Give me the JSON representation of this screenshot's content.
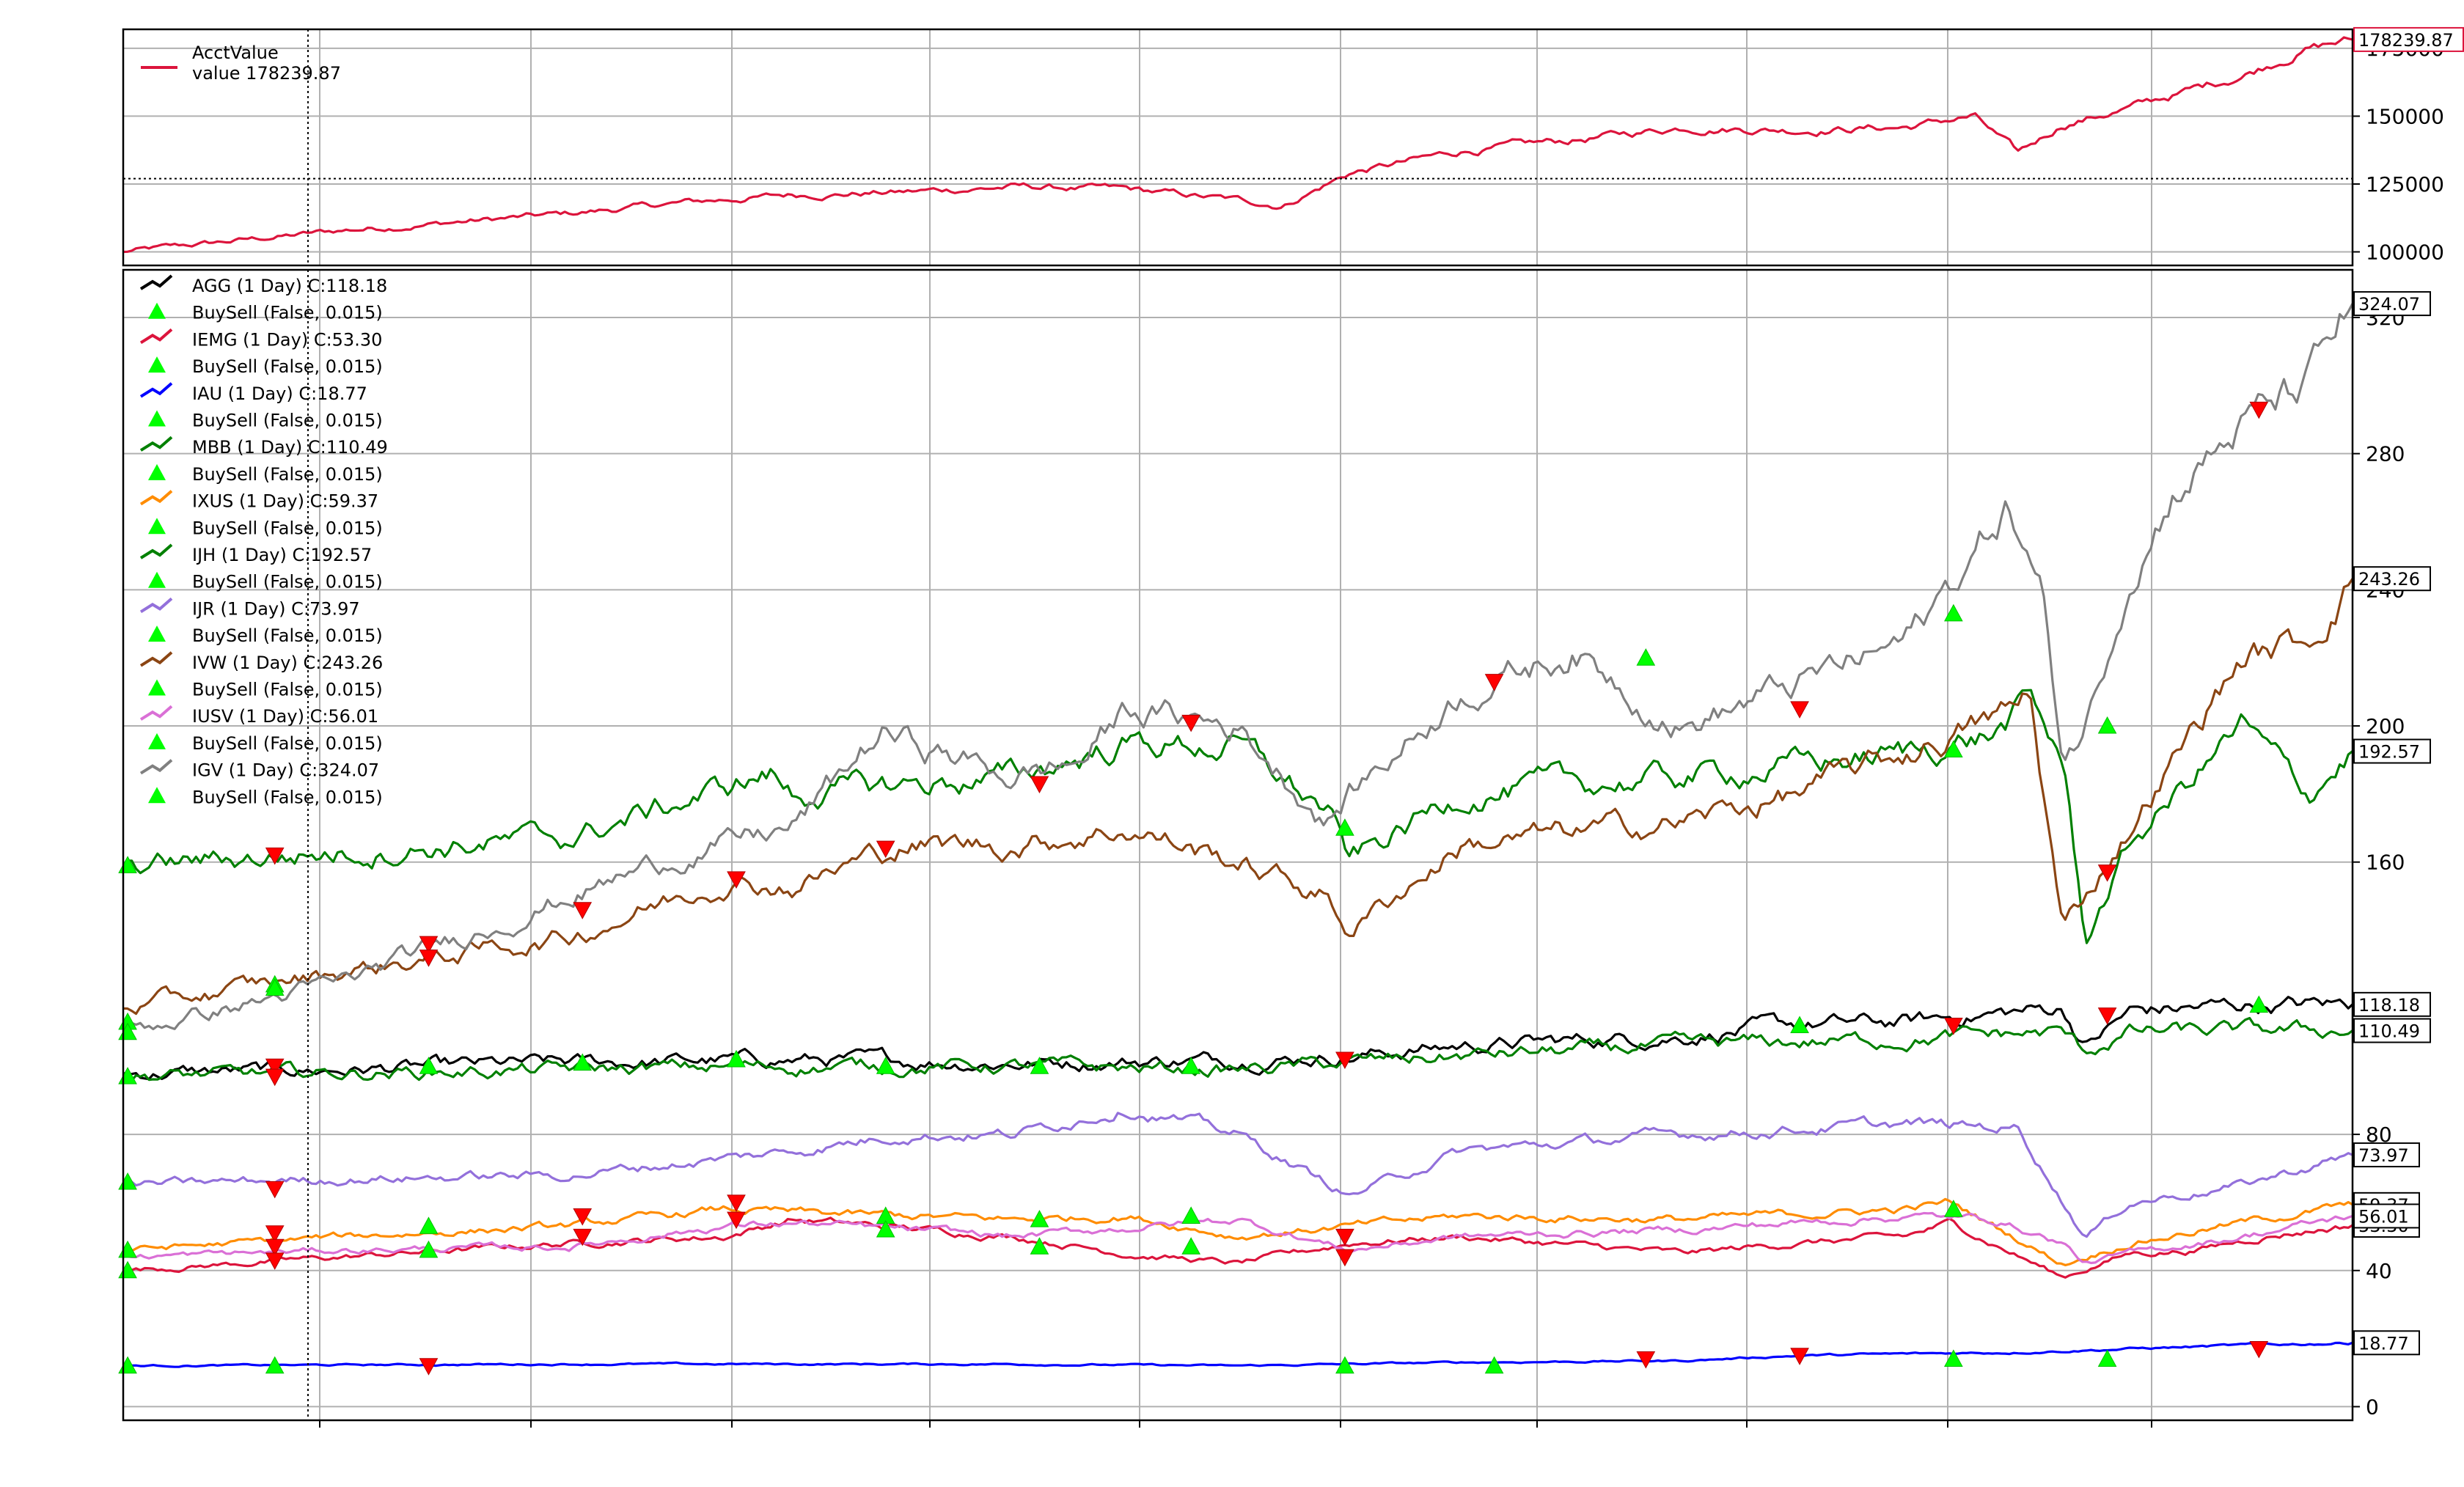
{
  "chart_data": [
    {
      "type": "line",
      "panel": "account-value",
      "title": "",
      "xlabel": "",
      "ylabel": "",
      "ylim": [
        95000,
        182000
      ],
      "yticks": [
        100000,
        125000,
        150000,
        175000
      ],
      "ytick_labels": [
        "100000",
        "125000",
        "150000",
        "175000"
      ],
      "grid": true,
      "legend_position": "top-left",
      "hline": 127000,
      "series": [
        {
          "name": "AcctValue",
          "legend_sub": "value 178239.87",
          "color": "#dc143c",
          "last_label": "178239.87",
          "x": [
            0,
            0.05,
            0.1,
            0.15,
            0.2,
            0.25,
            0.3,
            0.35,
            0.4,
            0.45,
            0.5,
            0.52,
            0.55,
            0.6,
            0.65,
            0.7,
            0.75,
            0.8,
            0.83,
            0.85,
            0.87,
            0.9,
            0.95,
            0.98,
            1.0
          ],
          "values": [
            100000,
            104000,
            108000,
            111000,
            114000,
            118000,
            121000,
            122000,
            124000,
            123000,
            119000,
            117000,
            129000,
            137000,
            141000,
            146000,
            145000,
            146000,
            150000,
            136000,
            147000,
            153000,
            165000,
            175000,
            178239.87
          ]
        }
      ]
    },
    {
      "type": "line",
      "panel": "prices",
      "title": "",
      "xlabel": "",
      "ylabel": "",
      "ylim": [
        -4,
        334
      ],
      "yticks": [
        0,
        40,
        80,
        160,
        200,
        240,
        280,
        320
      ],
      "ytick_labels": [
        "0",
        "40",
        "80",
        "160",
        "200",
        "240",
        "280",
        "320"
      ],
      "grid": true,
      "legend_position": "top-left",
      "series": [
        {
          "name": "AGG (1 Day) C:118.18",
          "color": "#000000",
          "last_label": "118.18",
          "x": [
            0,
            0.1,
            0.2,
            0.3,
            0.4,
            0.5,
            0.55,
            0.6,
            0.7,
            0.75,
            0.8,
            0.83,
            0.87,
            0.88,
            0.9,
            0.95,
            1.0
          ],
          "values": [
            98,
            99,
            101,
            102,
            101,
            102,
            103,
            106,
            109,
            112,
            113,
            115,
            117,
            106,
            116,
            118,
            118.18
          ]
        },
        {
          "name": "BuySell (False, 0.015)",
          "color": "#00ff00",
          "marker": "triangle"
        },
        {
          "name": "IEMG (1 Day) C:53.30",
          "color": "#dc143c",
          "last_label": "53.30",
          "x": [
            0,
            0.1,
            0.2,
            0.27,
            0.3,
            0.4,
            0.45,
            0.5,
            0.55,
            0.6,
            0.7,
            0.75,
            0.8,
            0.82,
            0.87,
            0.9,
            0.93,
            0.96,
            1.0
          ],
          "values": [
            40,
            44,
            48,
            50,
            55,
            50,
            45,
            42,
            48,
            50,
            45,
            48,
            50,
            54,
            38,
            45,
            46,
            50,
            53.3
          ]
        },
        {
          "name": "BuySell (False, 0.015)",
          "color": "#00ff00",
          "marker": "triangle"
        },
        {
          "name": "IAU (1 Day) C:18.77",
          "color": "#0000ff",
          "last_label": "18.77",
          "x": [
            0,
            0.2,
            0.4,
            0.5,
            0.6,
            0.7,
            0.75,
            0.8,
            0.85,
            0.9,
            0.95,
            1.0
          ],
          "values": [
            12,
            12.5,
            12.5,
            12,
            13,
            13.5,
            15,
            15.5,
            16,
            17,
            18,
            18.77
          ]
        },
        {
          "name": "BuySell (False, 0.015)",
          "color": "#00ff00",
          "marker": "triangle"
        },
        {
          "name": "MBB (1 Day) C:110.49",
          "color": "#008000",
          "last_label": "110.49",
          "x": [
            0,
            0.1,
            0.2,
            0.3,
            0.4,
            0.5,
            0.55,
            0.6,
            0.7,
            0.8,
            0.87,
            0.88,
            0.9,
            1.0
          ],
          "values": [
            97,
            98,
            99,
            100,
            100,
            99,
            101,
            103,
            106,
            108,
            110,
            104,
            110,
            110.49
          ]
        },
        {
          "name": "BuySell (False, 0.015)",
          "color": "#00ff00",
          "marker": "triangle"
        },
        {
          "name": "IXUS (1 Day) C:59.37",
          "color": "#ff8c00",
          "last_label": "59.37",
          "x": [
            0,
            0.1,
            0.2,
            0.27,
            0.3,
            0.4,
            0.45,
            0.5,
            0.55,
            0.6,
            0.7,
            0.8,
            0.82,
            0.87,
            0.9,
            0.95,
            1.0
          ],
          "values": [
            46,
            50,
            53,
            58,
            57,
            55,
            56,
            50,
            53,
            56,
            55,
            58,
            60,
            42,
            48,
            54,
            59.37
          ]
        },
        {
          "name": "BuySell (False, 0.015)",
          "color": "#00ff00",
          "marker": "triangle"
        },
        {
          "name": "IJH (1 Day) C:192.57",
          "color": "#008000",
          "last_label": "192.57",
          "x": [
            0,
            0.1,
            0.2,
            0.29,
            0.3,
            0.4,
            0.45,
            0.5,
            0.54,
            0.55,
            0.6,
            0.7,
            0.8,
            0.84,
            0.855,
            0.87,
            0.88,
            0.9,
            0.95,
            0.98,
            1.0
          ],
          "values": [
            159,
            163,
            167,
            186,
            180,
            185,
            195,
            194,
            175,
            160,
            180,
            185,
            192,
            198,
            207,
            190,
            137,
            165,
            200,
            180,
            192.57
          ]
        },
        {
          "name": "BuySell (False, 0.015)",
          "color": "#00ff00",
          "marker": "triangle"
        },
        {
          "name": "IJR (1 Day) C:73.97",
          "color": "#9370db",
          "last_label": "73.97",
          "x": [
            0,
            0.1,
            0.2,
            0.3,
            0.35,
            0.4,
            0.45,
            0.5,
            0.55,
            0.6,
            0.7,
            0.8,
            0.85,
            0.88,
            0.9,
            0.95,
            1.0
          ],
          "values": [
            65,
            67,
            68,
            75,
            80,
            80,
            88,
            80,
            62,
            75,
            80,
            83,
            82,
            50,
            60,
            65,
            73.97
          ]
        },
        {
          "name": "BuySell (False, 0.015)",
          "color": "#00ff00",
          "marker": "triangle"
        },
        {
          "name": "IVW (1 Day) C:243.26",
          "color": "#8b4513",
          "last_label": "243.26",
          "x": [
            0,
            0.1,
            0.2,
            0.27,
            0.3,
            0.35,
            0.4,
            0.45,
            0.5,
            0.54,
            0.55,
            0.6,
            0.7,
            0.75,
            0.8,
            0.85,
            0.855,
            0.87,
            0.875,
            0.9,
            0.95,
            0.98,
            1.0
          ],
          "values": [
            117,
            128,
            138,
            155,
            153,
            165,
            165,
            170,
            160,
            150,
            140,
            165,
            172,
            180,
            192,
            205,
            210,
            140,
            145,
            170,
            220,
            225,
            243.26
          ]
        },
        {
          "name": "BuySell (False, 0.015)",
          "color": "#00ff00",
          "marker": "triangle"
        },
        {
          "name": "IUSV (1 Day) C:56.01",
          "color": "#da70d6",
          "last_label": "56.01",
          "x": [
            0,
            0.1,
            0.2,
            0.27,
            0.3,
            0.4,
            0.5,
            0.55,
            0.6,
            0.7,
            0.8,
            0.84,
            0.87,
            0.88,
            0.9,
            0.95,
            1.0
          ],
          "values": [
            44,
            46,
            47,
            53,
            54,
            50,
            55,
            46,
            50,
            52,
            56,
            55,
            48,
            42,
            45,
            50,
            56.01
          ]
        },
        {
          "name": "BuySell (False, 0.015)",
          "color": "#00ff00",
          "marker": "triangle"
        },
        {
          "name": "IGV (1 Day) C:324.07",
          "color": "#808080",
          "last_label": "324.07",
          "x": [
            0,
            0.1,
            0.2,
            0.25,
            0.3,
            0.34,
            0.4,
            0.43,
            0.45,
            0.5,
            0.54,
            0.55,
            0.6,
            0.65,
            0.7,
            0.75,
            0.8,
            0.83,
            0.845,
            0.86,
            0.87,
            0.88,
            0.9,
            0.92,
            0.95,
            0.98,
            1.0
          ],
          "values": [
            110,
            125,
            150,
            162,
            170,
            198,
            185,
            190,
            205,
            200,
            172,
            180,
            210,
            222,
            200,
            212,
            225,
            250,
            265,
            240,
            190,
            200,
            245,
            270,
            288,
            300,
            324.07
          ]
        },
        {
          "name": "BuySell (False, 0.015)",
          "color": "#00ff00",
          "marker": "triangle"
        }
      ],
      "buy_markers": [
        {
          "x": 0.002,
          "y": 159
        },
        {
          "x": 0.002,
          "y": 113
        },
        {
          "x": 0.002,
          "y": 110
        },
        {
          "x": 0.002,
          "y": 97
        },
        {
          "x": 0.002,
          "y": 66
        },
        {
          "x": 0.002,
          "y": 46
        },
        {
          "x": 0.002,
          "y": 40
        },
        {
          "x": 0.002,
          "y": 12
        },
        {
          "x": 0.068,
          "y": 124
        },
        {
          "x": 0.068,
          "y": 123
        },
        {
          "x": 0.068,
          "y": 12
        },
        {
          "x": 0.137,
          "y": 100
        },
        {
          "x": 0.137,
          "y": 53
        },
        {
          "x": 0.137,
          "y": 46
        },
        {
          "x": 0.206,
          "y": 101
        },
        {
          "x": 0.275,
          "y": 102
        },
        {
          "x": 0.342,
          "y": 100
        },
        {
          "x": 0.342,
          "y": 56
        },
        {
          "x": 0.342,
          "y": 52
        },
        {
          "x": 0.411,
          "y": 100
        },
        {
          "x": 0.411,
          "y": 55
        },
        {
          "x": 0.411,
          "y": 47
        },
        {
          "x": 0.479,
          "y": 100
        },
        {
          "x": 0.479,
          "y": 56
        },
        {
          "x": 0.479,
          "y": 47
        },
        {
          "x": 0.548,
          "y": 170
        },
        {
          "x": 0.548,
          "y": 12
        },
        {
          "x": 0.615,
          "y": 12
        },
        {
          "x": 0.683,
          "y": 220
        },
        {
          "x": 0.752,
          "y": 112
        },
        {
          "x": 0.821,
          "y": 233
        },
        {
          "x": 0.821,
          "y": 193
        },
        {
          "x": 0.821,
          "y": 58
        },
        {
          "x": 0.821,
          "y": 14
        },
        {
          "x": 0.89,
          "y": 200
        },
        {
          "x": 0.89,
          "y": 14
        },
        {
          "x": 0.958,
          "y": 118
        }
      ],
      "sell_markers": [
        {
          "x": 0.068,
          "y": 162
        },
        {
          "x": 0.068,
          "y": 100
        },
        {
          "x": 0.068,
          "y": 97
        },
        {
          "x": 0.068,
          "y": 51
        },
        {
          "x": 0.068,
          "y": 47
        },
        {
          "x": 0.068,
          "y": 43
        },
        {
          "x": 0.068,
          "y": 64
        },
        {
          "x": 0.137,
          "y": 136
        },
        {
          "x": 0.137,
          "y": 132
        },
        {
          "x": 0.137,
          "y": 12
        },
        {
          "x": 0.206,
          "y": 146
        },
        {
          "x": 0.206,
          "y": 56
        },
        {
          "x": 0.206,
          "y": 50
        },
        {
          "x": 0.275,
          "y": 155
        },
        {
          "x": 0.275,
          "y": 60
        },
        {
          "x": 0.275,
          "y": 55
        },
        {
          "x": 0.342,
          "y": 164
        },
        {
          "x": 0.411,
          "y": 183
        },
        {
          "x": 0.479,
          "y": 201
        },
        {
          "x": 0.548,
          "y": 102
        },
        {
          "x": 0.548,
          "y": 50
        },
        {
          "x": 0.548,
          "y": 44
        },
        {
          "x": 0.615,
          "y": 213
        },
        {
          "x": 0.683,
          "y": 14
        },
        {
          "x": 0.752,
          "y": 205
        },
        {
          "x": 0.752,
          "y": 15
        },
        {
          "x": 0.821,
          "y": 112
        },
        {
          "x": 0.89,
          "y": 115
        },
        {
          "x": 0.89,
          "y": 157
        },
        {
          "x": 0.958,
          "y": 293
        },
        {
          "x": 0.958,
          "y": 17
        }
      ]
    }
  ]
}
